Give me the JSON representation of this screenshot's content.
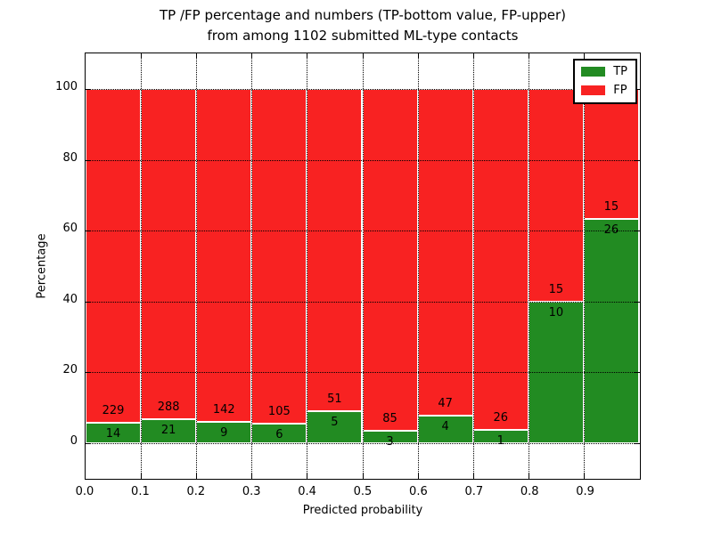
{
  "figure": {
    "title_line1": "TP /FP percentage and numbers (TP-bottom value, FP-upper)",
    "title_line2": "from among 1102 submitted ML-type contacts"
  },
  "axes": {
    "xlabel": "Predicted probability",
    "ylabel": "Percentage"
  },
  "legend": {
    "tp_label": "TP",
    "fp_label": "FP"
  },
  "chart_data": {
    "type": "bar",
    "stacked": true,
    "normalized_to_percent": 100,
    "title": "TP /FP percentage and numbers (TP-bottom value, FP-upper)\nfrom among 1102 submitted ML-type contacts",
    "xlabel": "Predicted probability",
    "ylabel": "Percentage",
    "total_contacts": 1102,
    "bin_edges": [
      0.0,
      0.1,
      0.2,
      0.3,
      0.4,
      0.5,
      0.6,
      0.7,
      0.8,
      0.9,
      1.0
    ],
    "series": [
      {
        "name": "TP",
        "color": "#228b22",
        "counts": [
          14,
          21,
          9,
          6,
          5,
          3,
          4,
          1,
          10,
          26
        ]
      },
      {
        "name": "FP",
        "color": "#f82222",
        "counts": [
          229,
          288,
          142,
          105,
          51,
          85,
          47,
          26,
          15,
          15
        ]
      }
    ],
    "tp_percent": [
      5.8,
      6.8,
      6.0,
      5.4,
      8.9,
      3.4,
      7.8,
      3.7,
      40.0,
      63.4
    ],
    "xticks": [
      "0.0",
      "0.1",
      "0.2",
      "0.3",
      "0.4",
      "0.5",
      "0.6",
      "0.7",
      "0.8",
      "0.9"
    ],
    "yticks": [
      0,
      20,
      40,
      60,
      80,
      100
    ],
    "xlim": [
      0.0,
      1.0
    ],
    "ylim": [
      -10.3,
      110.3
    ],
    "grid": true,
    "grid_style": "dotted",
    "legend_position": "upper right",
    "annotation_note": "TP-bottom value, FP-upper"
  }
}
